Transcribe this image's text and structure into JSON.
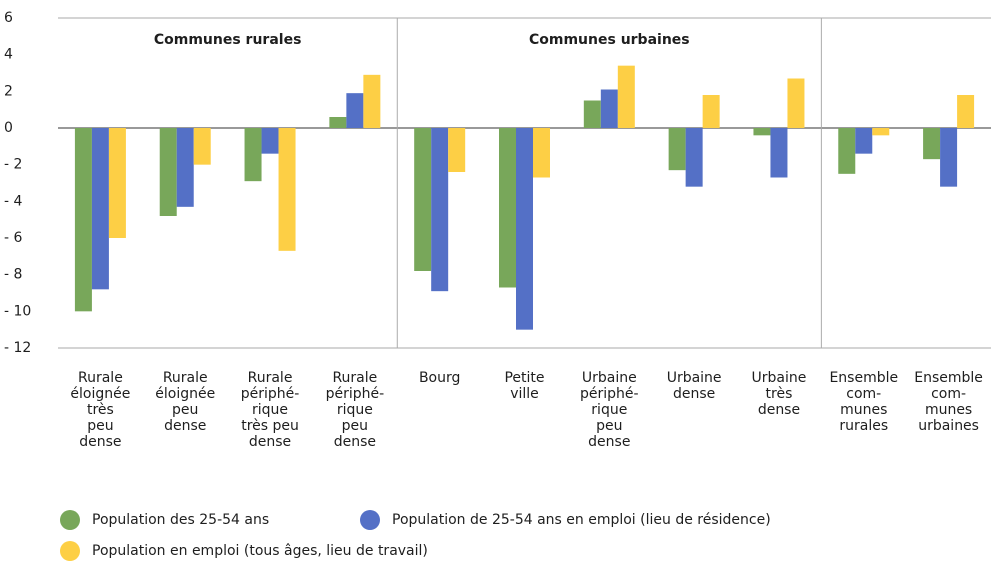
{
  "chart_data": {
    "type": "bar",
    "annotations": [
      "Communes rurales",
      "Communes urbaines"
    ],
    "categories": [
      [
        "Rurale",
        "éloignée",
        "très",
        "peu",
        "dense"
      ],
      [
        "Rurale",
        "éloignée",
        "peu",
        "dense"
      ],
      [
        "Rurale",
        "périphé-",
        "rique",
        "très peu",
        "dense"
      ],
      [
        "Rurale",
        "périphé-",
        "rique",
        "peu",
        "dense"
      ],
      [
        "Bourg"
      ],
      [
        "Petite",
        "ville"
      ],
      [
        "Urbaine",
        "périphé-",
        "rique",
        "peu",
        "dense"
      ],
      [
        "Urbaine",
        "dense"
      ],
      [
        "Urbaine",
        "très",
        "dense"
      ],
      [
        "Ensemble",
        "com-",
        "munes",
        "rurales"
      ],
      [
        "Ensemble",
        "com-",
        "munes",
        "urbaines"
      ]
    ],
    "series": [
      {
        "name": "Population des 25-54 ans",
        "color": "#78a75a",
        "values": [
          -10.0,
          -4.8,
          -2.9,
          0.6,
          -7.8,
          -8.7,
          1.5,
          -2.3,
          -0.4,
          -2.5,
          -1.7
        ]
      },
      {
        "name": "Population de 25-54 ans en emploi (lieu de résidence)",
        "color": "#5470c6",
        "values": [
          -8.8,
          -4.3,
          -1.4,
          1.9,
          -8.9,
          -11.0,
          2.1,
          -3.2,
          -2.7,
          -1.4,
          -3.2
        ]
      },
      {
        "name": "Population en emploi  (tous âges, lieu de travail)",
        "color": "#fdcf45",
        "values": [
          -6.0,
          -2.0,
          -6.7,
          2.9,
          -2.4,
          -2.7,
          3.4,
          1.8,
          2.7,
          -0.4,
          1.8
        ]
      }
    ],
    "ylim": [
      -12,
      6
    ],
    "yticks": [
      {
        "value": -12,
        "label": "- 12"
      },
      {
        "value": -10,
        "label": "- 10"
      },
      {
        "value": -8,
        "label": "- 8"
      },
      {
        "value": -6,
        "label": "- 6"
      },
      {
        "value": -4,
        "label": "- 4"
      },
      {
        "value": -2,
        "label": "- 2"
      },
      0,
      2,
      4,
      6
    ],
    "grid": false
  }
}
